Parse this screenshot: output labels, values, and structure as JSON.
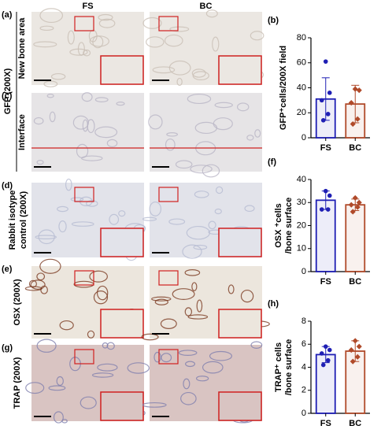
{
  "panels": {
    "columns": [
      "FS",
      "BC"
    ],
    "rows": [
      {
        "label": "(a)",
        "name": "New bone area"
      },
      {
        "label": "(c)",
        "name": "Interface"
      },
      {
        "label": "(d)",
        "name": [
          "Rabbit isotype",
          "control (200X)"
        ]
      },
      {
        "label": "(e)",
        "name": "OSX (200X)"
      },
      {
        "label": "(g)",
        "name": "TRAP (200X)"
      }
    ],
    "group": "GFP (200X)"
  },
  "chart_data": [
    {
      "type": "bar",
      "label": "(b)",
      "ylabel": [
        "GFP⁺cells/200X field"
      ],
      "categories": [
        "FS",
        "BC"
      ],
      "values": [
        31,
        27
      ],
      "errors": [
        17,
        15
      ],
      "points": [
        [
          61,
          36,
          30,
          19,
          14
        ],
        [
          39,
          38,
          28,
          15,
          11
        ]
      ],
      "colors": [
        "#1f1fb4",
        "#b04a2a"
      ],
      "ylim": [
        0,
        80
      ],
      "yticks": [
        0,
        20,
        40,
        60,
        80
      ]
    },
    {
      "type": "bar",
      "label": "(f)",
      "ylabel": [
        "OSX ⁺cells",
        "/bone surface"
      ],
      "categories": [
        "FS",
        "BC"
      ],
      "values": [
        31,
        29
      ],
      "errors": [
        4,
        2.5
      ],
      "points": [
        [
          35,
          33,
          27,
          27
        ],
        [
          32,
          30,
          29,
          28,
          26
        ]
      ],
      "colors": [
        "#1f1fb4",
        "#b04a2a"
      ],
      "ylim": [
        0,
        40
      ],
      "yticks": [
        0,
        10,
        20,
        30,
        40
      ]
    },
    {
      "type": "bar",
      "label": "(h)",
      "ylabel": [
        "TRAP⁺ cells",
        "/bone surface"
      ],
      "categories": [
        "FS",
        "BC"
      ],
      "values": [
        5.1,
        5.4
      ],
      "errors": [
        0.7,
        0.9
      ],
      "points": [
        [
          5.8,
          5.5,
          5.2,
          4.6,
          4.2
        ],
        [
          6.3,
          5.8,
          5.5,
          4.9,
          4.5
        ]
      ],
      "colors": [
        "#1f1fb4",
        "#b04a2a"
      ],
      "ylim": [
        0,
        8
      ],
      "yticks": [
        0,
        2,
        4,
        6,
        8
      ]
    }
  ]
}
